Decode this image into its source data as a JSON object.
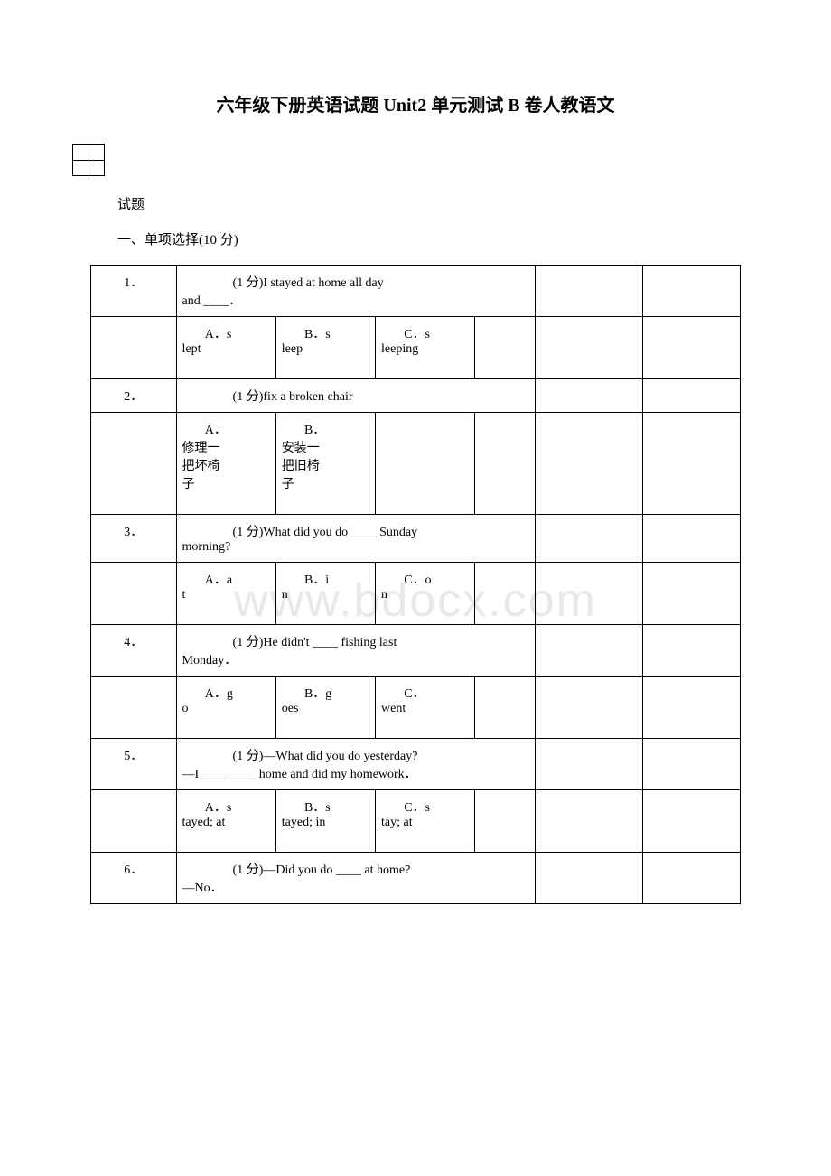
{
  "title": "六年级下册英语试题 Unit2 单元测试 B 卷人教语文",
  "subtitle": "试题",
  "section_heading": "一、单项选择(10 分)",
  "watermark": "www.bdocx.com",
  "questions": [
    {
      "num": "1．",
      "text_line1": "(1 分)I stayed at home all day",
      "text_line2": "and ____．",
      "opts": [
        {
          "a1": "A．s",
          "a2": "lept"
        },
        {
          "a1": "B．s",
          "a2": "leep"
        },
        {
          "a1": "C．s",
          "a2": "leeping"
        }
      ]
    },
    {
      "num": "2．",
      "text_line1": "(1 分)fix a broken chair",
      "text_line2": "",
      "opts": [
        {
          "a1": "A．",
          "a2": "修理一",
          "a3": "把坏椅",
          "a4": "子"
        },
        {
          "a1": "B．",
          "a2": "安装一",
          "a3": "把旧椅",
          "a4": "子"
        },
        {
          "a1": "",
          "a2": "",
          "a3": "",
          "a4": ""
        }
      ]
    },
    {
      "num": "3．",
      "text_line1": "(1 分)What did you do ____ Sunday",
      "text_line2": "morning?",
      "opts": [
        {
          "a1": "A．a",
          "a2": "t"
        },
        {
          "a1": "B．i",
          "a2": "n"
        },
        {
          "a1": "C．o",
          "a2": "n"
        }
      ]
    },
    {
      "num": "4．",
      "text_line1": "(1 分)He didn't ____ fishing last",
      "text_line2": "Monday．",
      "opts": [
        {
          "a1": "A．g",
          "a2": "o"
        },
        {
          "a1": "B．g",
          "a2": "oes"
        },
        {
          "a1": "C．",
          "a2": "went"
        }
      ]
    },
    {
      "num": "5．",
      "text_line1": "(1 分)—What did you do yesterday?",
      "text_line2": "—I ____ ____ home and did my homework．",
      "opts": [
        {
          "a1": "A．s",
          "a2": "tayed; at"
        },
        {
          "a1": "B．s",
          "a2": "tayed; in"
        },
        {
          "a1": "C．s",
          "a2": "tay; at"
        }
      ]
    },
    {
      "num": "6．",
      "text_line1": "(1 分)—Did you do ____ at home?",
      "text_line2": "—No．",
      "opts": []
    }
  ]
}
